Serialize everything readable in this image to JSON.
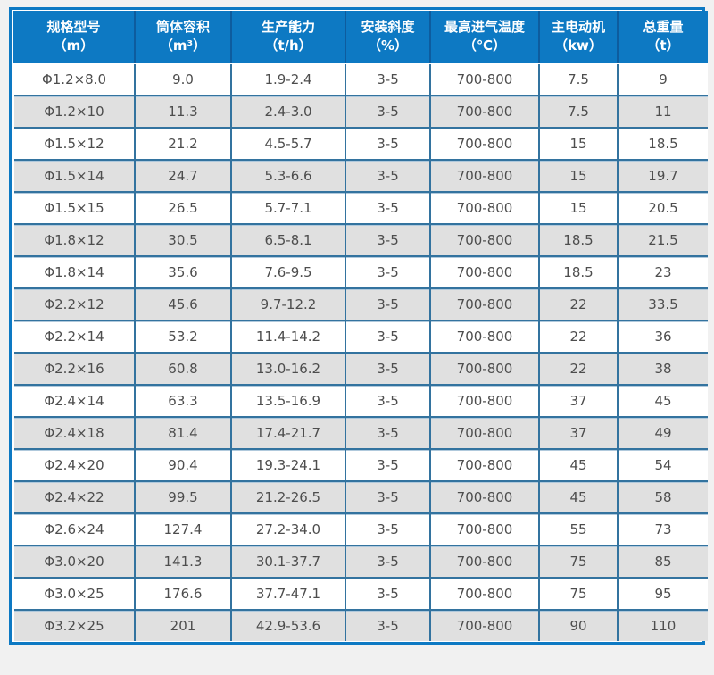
{
  "colors": {
    "header_bg": "#0d79c3",
    "outer_border": "#0d79c3",
    "header_separator": "#0d5c9e",
    "cell_border": "#33739f",
    "row_alt_bg": "#e0e0e0",
    "row_bg": "#ffffff",
    "cell_text": "#4d4d4d",
    "header_text": "#ffffff",
    "page_bg": "#f1f1f1"
  },
  "table": {
    "columns": [
      {
        "title": "规格型号",
        "unit": "（m）"
      },
      {
        "title": "筒体容积",
        "unit": "（m³）"
      },
      {
        "title": "生产能力",
        "unit": "（t/h）"
      },
      {
        "title": "安装斜度",
        "unit": "（%）"
      },
      {
        "title": "最高进气温度",
        "unit": "（℃）"
      },
      {
        "title": "主电动机",
        "unit": "（kw）"
      },
      {
        "title": "总重量",
        "unit": "（t）"
      }
    ],
    "rows": [
      [
        "Φ1.2×8.0",
        "9.0",
        "1.9-2.4",
        "3-5",
        "700-800",
        "7.5",
        "9"
      ],
      [
        "Φ1.2×10",
        "11.3",
        "2.4-3.0",
        "3-5",
        "700-800",
        "7.5",
        "11"
      ],
      [
        "Φ1.5×12",
        "21.2",
        "4.5-5.7",
        "3-5",
        "700-800",
        "15",
        "18.5"
      ],
      [
        "Φ1.5×14",
        "24.7",
        "5.3-6.6",
        "3-5",
        "700-800",
        "15",
        "19.7"
      ],
      [
        "Φ1.5×15",
        "26.5",
        "5.7-7.1",
        "3-5",
        "700-800",
        "15",
        "20.5"
      ],
      [
        "Φ1.8×12",
        "30.5",
        "6.5-8.1",
        "3-5",
        "700-800",
        "18.5",
        "21.5"
      ],
      [
        "Φ1.8×14",
        "35.6",
        "7.6-9.5",
        "3-5",
        "700-800",
        "18.5",
        "23"
      ],
      [
        "Φ2.2×12",
        "45.6",
        "9.7-12.2",
        "3-5",
        "700-800",
        "22",
        "33.5"
      ],
      [
        "Φ2.2×14",
        "53.2",
        "11.4-14.2",
        "3-5",
        "700-800",
        "22",
        "36"
      ],
      [
        "Φ2.2×16",
        "60.8",
        "13.0-16.2",
        "3-5",
        "700-800",
        "22",
        "38"
      ],
      [
        "Φ2.4×14",
        "63.3",
        "13.5-16.9",
        "3-5",
        "700-800",
        "37",
        "45"
      ],
      [
        "Φ2.4×18",
        "81.4",
        "17.4-21.7",
        "3-5",
        "700-800",
        "37",
        "49"
      ],
      [
        "Φ2.4×20",
        "90.4",
        "19.3-24.1",
        "3-5",
        "700-800",
        "45",
        "54"
      ],
      [
        "Φ2.4×22",
        "99.5",
        "21.2-26.5",
        "3-5",
        "700-800",
        "45",
        "58"
      ],
      [
        "Φ2.6×24",
        "127.4",
        "27.2-34.0",
        "3-5",
        "700-800",
        "55",
        "73"
      ],
      [
        "Φ3.0×20",
        "141.3",
        "30.1-37.7",
        "3-5",
        "700-800",
        "75",
        "85"
      ],
      [
        "Φ3.0×25",
        "176.6",
        "37.7-47.1",
        "3-5",
        "700-800",
        "75",
        "95"
      ],
      [
        "Φ3.2×25",
        "201",
        "42.9-53.6",
        "3-5",
        "700-800",
        "90",
        "110"
      ]
    ]
  }
}
